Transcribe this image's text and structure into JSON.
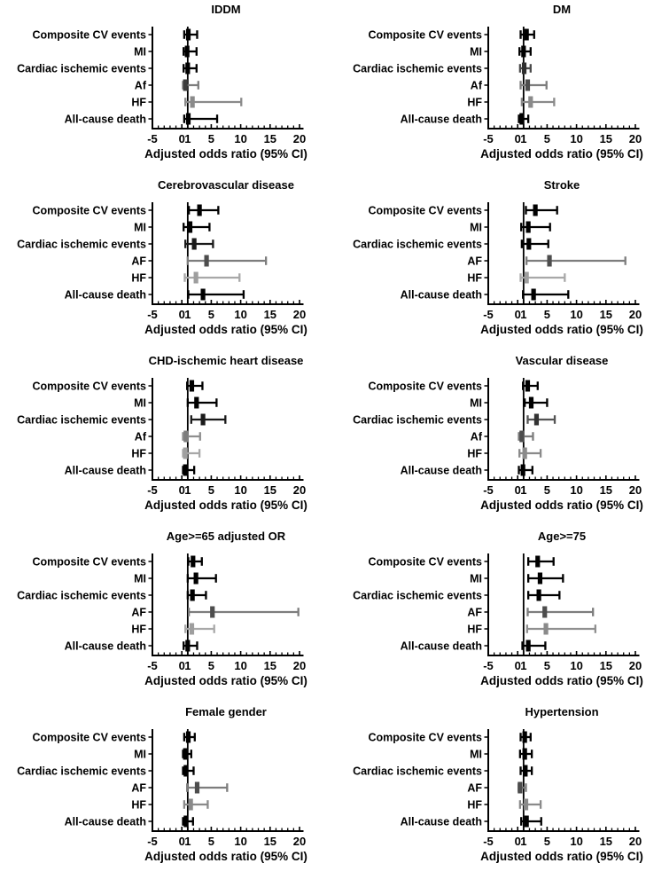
{
  "figure": {
    "description": "Forest plots of adjusted odds ratios (95% CI) for cardiovascular outcomes across ten risk-factor subgroups",
    "layout": "2 columns x 5 rows of panels"
  },
  "chart_data": {
    "type": "forest_grid",
    "columns": 2,
    "xlabel": "Adjusted odds ratio (95% CI)",
    "xticks": [
      -5,
      0,
      1,
      5,
      10,
      15,
      20
    ],
    "xlim": [
      -5,
      20
    ],
    "refline": 1,
    "grid": false,
    "panels": [
      {
        "title": "IDDM",
        "rows": [
          {
            "label": "Composite CV events",
            "or": 1.1,
            "lo": 0.4,
            "hi": 2.6,
            "marker_color": "#000000",
            "line_color": "#000000"
          },
          {
            "label": "MI",
            "or": 0.9,
            "lo": 0.3,
            "hi": 2.5,
            "marker_color": "#000000",
            "line_color": "#000000"
          },
          {
            "label": "Cardiac ischemic events",
            "or": 1.0,
            "lo": 0.3,
            "hi": 2.5,
            "marker_color": "#000000",
            "line_color": "#000000"
          },
          {
            "label": "Af",
            "or": 0.6,
            "lo": 0.2,
            "hi": 2.8,
            "marker_color": "#3d3d3d",
            "line_color": "#7d7d7d"
          },
          {
            "label": "HF",
            "or": 1.8,
            "lo": 0.6,
            "hi": 10.1,
            "marker_color": "#8a8a8a",
            "line_color": "#8a8a8a"
          },
          {
            "label": "All-cause death",
            "or": 1.1,
            "lo": 0.4,
            "hi": 6.0,
            "marker_color": "#000000",
            "line_color": "#000000"
          }
        ]
      },
      {
        "title": "DM",
        "rows": [
          {
            "label": "Composite CV events",
            "or": 1.5,
            "lo": 0.5,
            "hi": 2.8,
            "marker_color": "#000000",
            "line_color": "#000000"
          },
          {
            "label": "MI",
            "or": 1.0,
            "lo": 0.3,
            "hi": 2.2,
            "marker_color": "#000000",
            "line_color": "#000000"
          },
          {
            "label": "Cardiac ischemic events",
            "or": 1.1,
            "lo": 0.4,
            "hi": 2.2,
            "marker_color": "#2e2e2e",
            "line_color": "#4a4a4a"
          },
          {
            "label": "Af",
            "or": 1.7,
            "lo": 0.5,
            "hi": 4.9,
            "marker_color": "#4d4d4d",
            "line_color": "#7d7d7d"
          },
          {
            "label": "HF",
            "or": 2.2,
            "lo": 0.7,
            "hi": 6.2,
            "marker_color": "#8a8a8a",
            "line_color": "#8a8a8a"
          },
          {
            "label": "All-cause death",
            "or": 0.7,
            "lo": 0.2,
            "hi": 1.8,
            "marker_color": "#000000",
            "line_color": "#000000"
          }
        ]
      },
      {
        "title": "Cerebrovascular disease",
        "rows": [
          {
            "label": "Composite CV events",
            "or": 3.0,
            "lo": 1.2,
            "hi": 6.2,
            "marker_color": "#000000",
            "line_color": "#000000"
          },
          {
            "label": "MI",
            "or": 1.4,
            "lo": 0.3,
            "hi": 4.7,
            "marker_color": "#000000",
            "line_color": "#000000"
          },
          {
            "label": "Cardiac ischemic events",
            "or": 2.1,
            "lo": 0.6,
            "hi": 5.3,
            "marker_color": "#1a1a1a",
            "line_color": "#1a1a1a"
          },
          {
            "label": "AF",
            "or": 4.2,
            "lo": 1.0,
            "hi": 14.3,
            "marker_color": "#4d4d4d",
            "line_color": "#7d7d7d"
          },
          {
            "label": "HF",
            "or": 2.4,
            "lo": 0.5,
            "hi": 9.8,
            "marker_color": "#9e9e9e",
            "line_color": "#a8a8a8"
          },
          {
            "label": "All-cause death",
            "or": 3.6,
            "lo": 1.1,
            "hi": 10.5,
            "marker_color": "#000000",
            "line_color": "#000000"
          }
        ]
      },
      {
        "title": "Stroke",
        "rows": [
          {
            "label": "Composite CV events",
            "or": 3.0,
            "lo": 1.4,
            "hi": 6.7,
            "marker_color": "#000000",
            "line_color": "#000000"
          },
          {
            "label": "MI",
            "or": 1.8,
            "lo": 0.6,
            "hi": 5.5,
            "marker_color": "#000000",
            "line_color": "#000000"
          },
          {
            "label": "Cardiac ischemic events",
            "or": 1.9,
            "lo": 0.7,
            "hi": 5.2,
            "marker_color": "#000000",
            "line_color": "#000000"
          },
          {
            "label": "AF",
            "or": 5.4,
            "lo": 1.5,
            "hi": 18.3,
            "marker_color": "#4d4d4d",
            "line_color": "#7d7d7d"
          },
          {
            "label": "HF",
            "or": 1.5,
            "lo": 0.5,
            "hi": 8.0,
            "marker_color": "#9e9e9e",
            "line_color": "#a8a8a8"
          },
          {
            "label": "All-cause death",
            "or": 2.7,
            "lo": 0.9,
            "hi": 8.6,
            "marker_color": "#000000",
            "line_color": "#000000"
          }
        ]
      },
      {
        "title": "CHD-ischemic heart disease",
        "rows": [
          {
            "label": "Composite CV events",
            "or": 1.7,
            "lo": 0.9,
            "hi": 3.5,
            "marker_color": "#000000",
            "line_color": "#000000"
          },
          {
            "label": "MI",
            "or": 2.5,
            "lo": 1.0,
            "hi": 5.9,
            "marker_color": "#000000",
            "line_color": "#000000"
          },
          {
            "label": "Cardiac ischemic events",
            "or": 3.6,
            "lo": 1.6,
            "hi": 7.4,
            "marker_color": "#1a1a1a",
            "line_color": "#1a1a1a"
          },
          {
            "label": "Af",
            "or": 0.7,
            "lo": 0.2,
            "hi": 3.1,
            "marker_color": "#7d7d7d",
            "line_color": "#8f8f8f"
          },
          {
            "label": "HF",
            "or": 0.6,
            "lo": 0.2,
            "hi": 3.0,
            "marker_color": "#a0a0a0",
            "line_color": "#a8a8a8"
          },
          {
            "label": "All-cause death",
            "or": 0.6,
            "lo": 0.2,
            "hi": 2.1,
            "marker_color": "#000000",
            "line_color": "#000000"
          }
        ]
      },
      {
        "title": "Vascular disease",
        "rows": [
          {
            "label": "Composite CV events",
            "or": 1.7,
            "lo": 0.9,
            "hi": 3.4,
            "marker_color": "#000000",
            "line_color": "#000000"
          },
          {
            "label": "MI",
            "or": 2.3,
            "lo": 1.2,
            "hi": 5.0,
            "marker_color": "#000000",
            "line_color": "#000000"
          },
          {
            "label": "Cardiac ischemic events",
            "or": 3.2,
            "lo": 1.7,
            "hi": 6.3,
            "marker_color": "#333333",
            "line_color": "#555555"
          },
          {
            "label": "Af",
            "or": 0.7,
            "lo": 0.2,
            "hi": 2.6,
            "marker_color": "#4d4d4d",
            "line_color": "#7d7d7d"
          },
          {
            "label": "HF",
            "or": 1.2,
            "lo": 0.3,
            "hi": 3.9,
            "marker_color": "#8a8a8a",
            "line_color": "#8a8a8a"
          },
          {
            "label": "All-cause death",
            "or": 0.9,
            "lo": 0.2,
            "hi": 2.5,
            "marker_color": "#000000",
            "line_color": "#000000"
          }
        ]
      },
      {
        "title": "Age>=65 adjusted OR",
        "rows": [
          {
            "label": "Composite CV events",
            "or": 1.9,
            "lo": 1.1,
            "hi": 3.4,
            "marker_color": "#000000",
            "line_color": "#000000"
          },
          {
            "label": "MI",
            "or": 2.4,
            "lo": 1.0,
            "hi": 5.8,
            "marker_color": "#000000",
            "line_color": "#000000"
          },
          {
            "label": "Cardiac ischemic events",
            "or": 1.8,
            "lo": 1.0,
            "hi": 4.1,
            "marker_color": "#000000",
            "line_color": "#000000"
          },
          {
            "label": "AF",
            "or": 5.2,
            "lo": 1.2,
            "hi": 19.8,
            "marker_color": "#4d4d4d",
            "line_color": "#7d7d7d"
          },
          {
            "label": "HF",
            "or": 1.7,
            "lo": 0.6,
            "hi": 5.5,
            "marker_color": "#9e9e9e",
            "line_color": "#a8a8a8"
          },
          {
            "label": "All-cause death",
            "or": 1.0,
            "lo": 0.3,
            "hi": 2.6,
            "marker_color": "#000000",
            "line_color": "#000000"
          }
        ]
      },
      {
        "title": "Age>=75",
        "rows": [
          {
            "label": "Composite CV events",
            "or": 3.4,
            "lo": 1.8,
            "hi": 6.1,
            "marker_color": "#000000",
            "line_color": "#000000"
          },
          {
            "label": "MI",
            "or": 3.8,
            "lo": 1.8,
            "hi": 7.7,
            "marker_color": "#000000",
            "line_color": "#000000"
          },
          {
            "label": "Cardiac ischemic events",
            "or": 3.6,
            "lo": 1.8,
            "hi": 7.1,
            "marker_color": "#000000",
            "line_color": "#000000"
          },
          {
            "label": "AF",
            "or": 4.6,
            "lo": 1.7,
            "hi": 12.8,
            "marker_color": "#4d4d4d",
            "line_color": "#7d7d7d"
          },
          {
            "label": "HF",
            "or": 4.8,
            "lo": 1.6,
            "hi": 13.2,
            "marker_color": "#8a8a8a",
            "line_color": "#8f8f8f"
          },
          {
            "label": "All-cause death",
            "or": 1.8,
            "lo": 0.8,
            "hi": 4.7,
            "marker_color": "#000000",
            "line_color": "#000000"
          }
        ]
      },
      {
        "title": "Female gender",
        "rows": [
          {
            "label": "Composite CV events",
            "or": 1.1,
            "lo": 0.4,
            "hi": 2.2,
            "marker_color": "#000000",
            "line_color": "#000000"
          },
          {
            "label": "MI",
            "or": 0.6,
            "lo": 0.2,
            "hi": 1.6,
            "marker_color": "#000000",
            "line_color": "#000000"
          },
          {
            "label": "Cardiac ischemic events",
            "or": 0.7,
            "lo": 0.2,
            "hi": 2.0,
            "marker_color": "#000000",
            "line_color": "#000000"
          },
          {
            "label": "AF",
            "or": 2.6,
            "lo": 0.9,
            "hi": 7.7,
            "marker_color": "#4d4d4d",
            "line_color": "#7d7d7d"
          },
          {
            "label": "HF",
            "or": 1.5,
            "lo": 0.4,
            "hi": 4.4,
            "marker_color": "#8a8a8a",
            "line_color": "#8a8a8a"
          },
          {
            "label": "All-cause death",
            "or": 0.7,
            "lo": 0.2,
            "hi": 1.9,
            "marker_color": "#000000",
            "line_color": "#000000"
          }
        ]
      },
      {
        "title": "Hypertension",
        "rows": [
          {
            "label": "Composite CV events",
            "or": 1.2,
            "lo": 0.5,
            "hi": 2.2,
            "marker_color": "#000000",
            "line_color": "#000000"
          },
          {
            "label": "MI",
            "or": 1.2,
            "lo": 0.4,
            "hi": 2.4,
            "marker_color": "#000000",
            "line_color": "#000000"
          },
          {
            "label": "Cardiac ischemic events",
            "or": 1.3,
            "lo": 0.5,
            "hi": 2.4,
            "marker_color": "#000000",
            "line_color": "#000000"
          },
          {
            "label": "AF",
            "or": 0.4,
            "lo": 0.15,
            "hi": 1.4,
            "marker_color": "#4d4d4d",
            "line_color": "#7d7d7d"
          },
          {
            "label": "HF",
            "or": 1.4,
            "lo": 0.4,
            "hi": 3.9,
            "marker_color": "#8a8a8a",
            "line_color": "#8a8a8a"
          },
          {
            "label": "All-cause death",
            "or": 1.5,
            "lo": 0.6,
            "hi": 4.0,
            "marker_color": "#000000",
            "line_color": "#000000"
          }
        ]
      }
    ]
  },
  "colors": {
    "axis": "#000000",
    "black_series": "#000000",
    "af_series": "#4d4d4d",
    "af_whisker": "#7d7d7d",
    "hf_series": "#8a8a8a",
    "hf_light_series": "#a8a8a8",
    "background": "#ffffff"
  }
}
